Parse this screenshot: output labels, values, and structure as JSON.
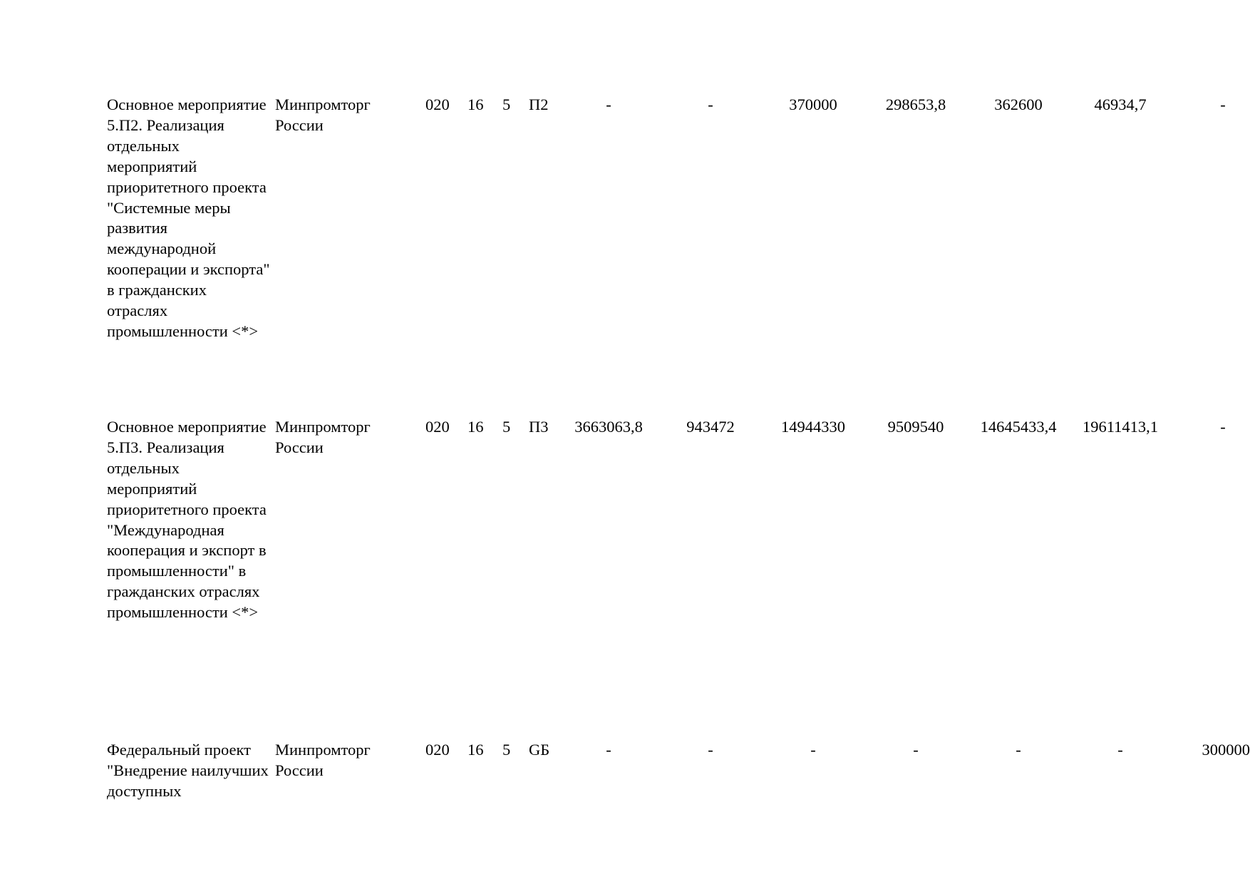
{
  "rows": [
    {
      "name": "Основное мероприятие 5.П2. Реализация отдельных мероприятий приоритетного проекта \"Системные меры развития международной кооперации и экспорта\" в гражданских отраслях промышленности <*>",
      "org": "Минпромторг России",
      "codes": [
        "020",
        "16",
        "5",
        "П2"
      ],
      "values": [
        "-",
        "-",
        "370000",
        "298653,8",
        "362600",
        "46934,7",
        "-"
      ]
    },
    {
      "name": "Основное мероприятие 5.П3. Реализация отдельных мероприятий приоритетного проекта \"Международная кооперация и экспорт в промышленности\" в гражданских отраслях промышленности <*>",
      "org": "Минпромторг России",
      "codes": [
        "020",
        "16",
        "5",
        "П3"
      ],
      "values": [
        "3663063,8",
        "943472",
        "14944330",
        "9509540",
        "14645433,4",
        "19611413,1",
        "-"
      ]
    },
    {
      "name": "Федеральный проект \"Внедрение наилучших доступных",
      "org": "Минпромторг России",
      "codes": [
        "020",
        "16",
        "5",
        "GБ"
      ],
      "values": [
        "-",
        "-",
        "-",
        "-",
        "-",
        "-",
        "300000"
      ]
    }
  ]
}
